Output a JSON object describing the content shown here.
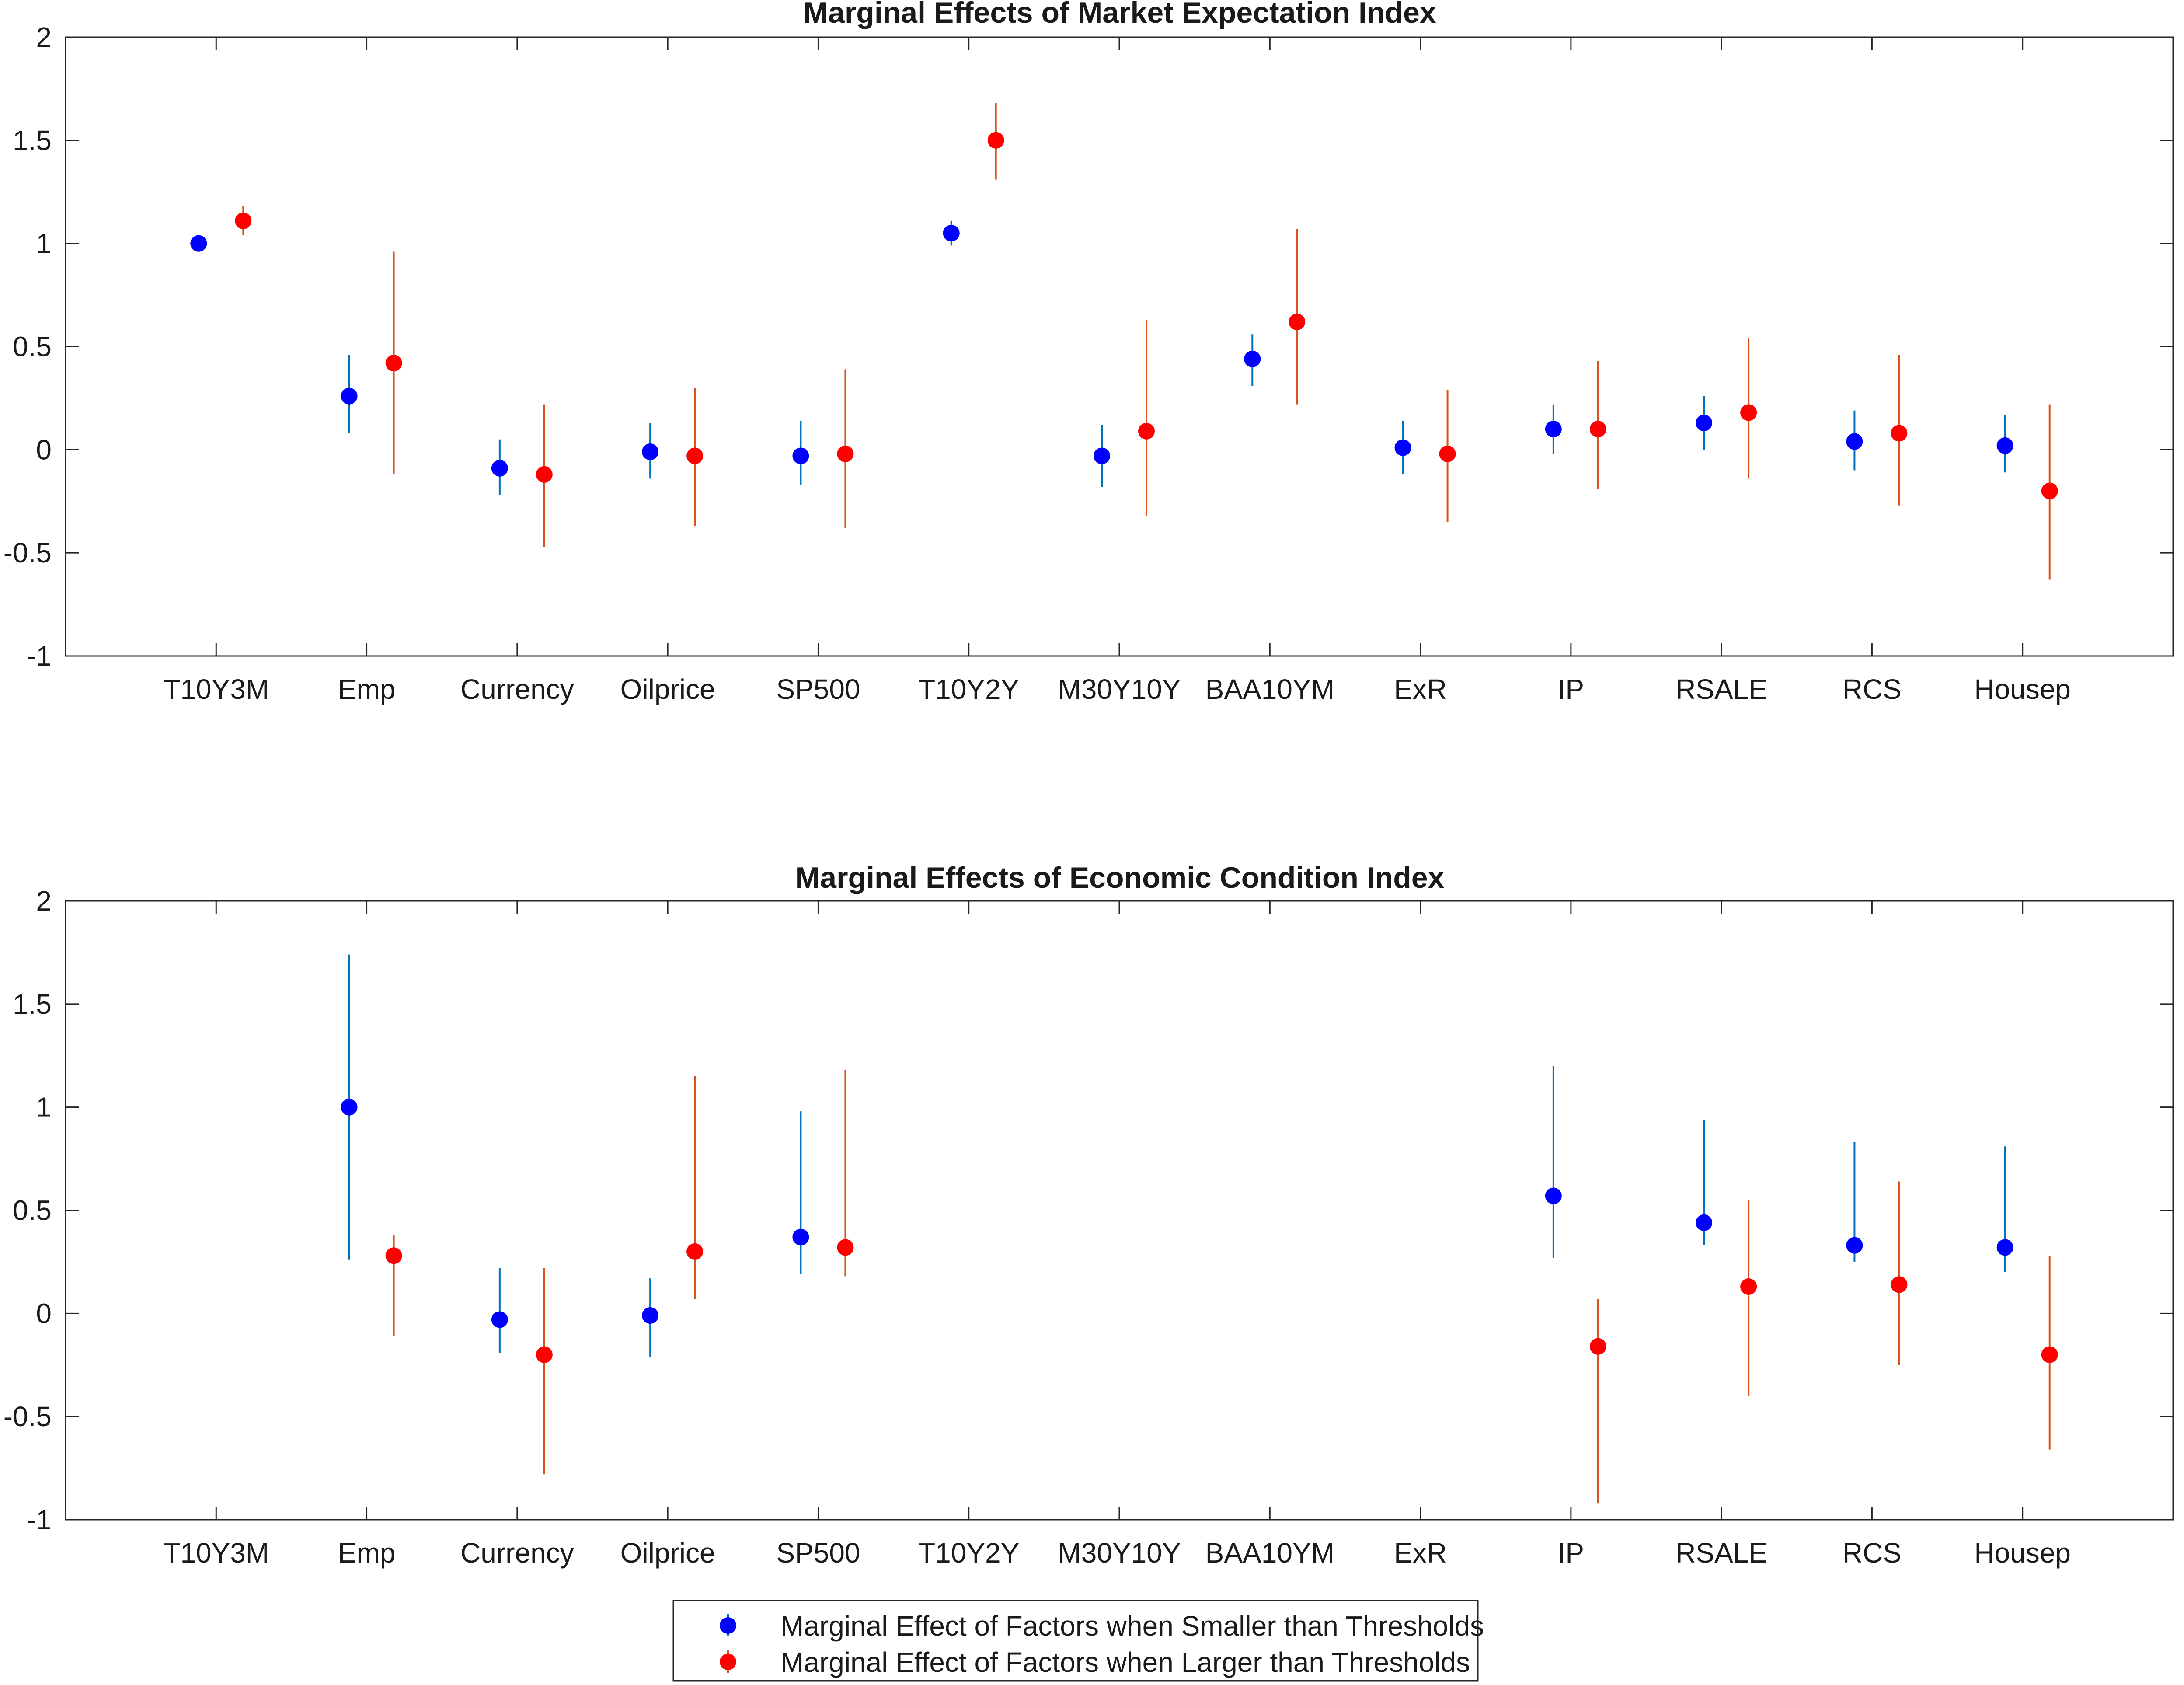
{
  "chart_data": [
    {
      "type": "scatter",
      "title": "Marginal Effects of Market Expectation Index",
      "xlabel": "",
      "ylabel": "",
      "ylim": [
        -1,
        2
      ],
      "yticks": [
        "-1",
        "-0.5",
        "0",
        "0.5",
        "1",
        "1.5",
        "2"
      ],
      "categories": [
        "T10Y3M",
        "Emp",
        "Currency",
        "Oilprice",
        "SP500",
        "T10Y2Y",
        "M30Y10Y",
        "BAA10YM",
        "ExR",
        "IP",
        "RSALE",
        "RCS",
        "Housep"
      ],
      "grid": false,
      "series": [
        {
          "name": "Marginal Effect of Factors when Smaller than Thresholds",
          "marker_color": "#0000ff",
          "bar_color": "#0072bd",
          "values": [
            1.0,
            0.26,
            -0.09,
            -0.01,
            -0.03,
            1.05,
            -0.03,
            0.44,
            0.01,
            0.1,
            0.13,
            0.04,
            0.02
          ],
          "lower": [
            1.0,
            0.08,
            -0.22,
            -0.14,
            -0.17,
            0.99,
            -0.18,
            0.31,
            -0.12,
            -0.02,
            0.0,
            -0.1,
            -0.11
          ],
          "upper": [
            1.0,
            0.46,
            0.05,
            0.13,
            0.14,
            1.11,
            0.12,
            0.56,
            0.14,
            0.22,
            0.26,
            0.19,
            0.17
          ]
        },
        {
          "name": "Marginal Effect of Factors when Larger than Thresholds",
          "marker_color": "#ff0000",
          "bar_color": "#d95319",
          "values": [
            1.11,
            0.42,
            -0.12,
            -0.03,
            -0.02,
            1.5,
            0.09,
            0.62,
            -0.02,
            0.1,
            0.18,
            0.08,
            -0.2
          ],
          "lower": [
            1.04,
            -0.12,
            -0.47,
            -0.37,
            -0.38,
            1.31,
            -0.32,
            0.22,
            -0.35,
            -0.19,
            -0.14,
            -0.27,
            -0.63
          ],
          "upper": [
            1.18,
            0.96,
            0.22,
            0.3,
            0.39,
            1.68,
            0.63,
            1.07,
            0.29,
            0.43,
            0.54,
            0.46,
            0.22
          ]
        }
      ]
    },
    {
      "type": "scatter",
      "title": "Marginal Effects of Economic Condition Index",
      "xlabel": "",
      "ylabel": "",
      "ylim": [
        -1,
        2
      ],
      "yticks": [
        "-1",
        "-0.5",
        "0",
        "0.5",
        "1",
        "1.5",
        "2"
      ],
      "categories": [
        "T10Y3M",
        "Emp",
        "Currency",
        "Oilprice",
        "SP500",
        "T10Y2Y",
        "M30Y10Y",
        "BAA10YM",
        "ExR",
        "IP",
        "RSALE",
        "RCS",
        "Housep"
      ],
      "grid": false,
      "series": [
        {
          "name": "Marginal Effect of Factors when Smaller than Thresholds",
          "marker_color": "#0000ff",
          "bar_color": "#0072bd",
          "values": [
            null,
            1.0,
            -0.03,
            -0.01,
            0.37,
            null,
            null,
            null,
            null,
            0.57,
            0.44,
            0.33,
            0.32
          ],
          "lower": [
            null,
            0.26,
            -0.19,
            -0.21,
            0.19,
            null,
            null,
            null,
            null,
            0.27,
            0.33,
            0.25,
            0.2
          ],
          "upper": [
            null,
            1.74,
            0.22,
            0.17,
            0.98,
            null,
            null,
            null,
            null,
            1.2,
            0.94,
            0.83,
            0.81
          ]
        },
        {
          "name": "Marginal Effect of Factors when Larger than Thresholds",
          "marker_color": "#ff0000",
          "bar_color": "#d95319",
          "values": [
            null,
            0.28,
            -0.2,
            0.3,
            0.32,
            null,
            null,
            null,
            null,
            -0.16,
            0.13,
            0.14,
            -0.2
          ],
          "lower": [
            null,
            -0.11,
            -0.78,
            0.07,
            0.18,
            null,
            null,
            null,
            null,
            -0.92,
            -0.4,
            -0.25,
            -0.66
          ],
          "upper": [
            null,
            0.38,
            0.22,
            1.15,
            1.18,
            null,
            null,
            null,
            null,
            0.07,
            0.55,
            0.64,
            0.28
          ]
        }
      ]
    }
  ],
  "legend": {
    "placement": "bottom-center",
    "entries": [
      "Marginal Effect of Factors when Smaller than Thresholds",
      "Marginal Effect of Factors when Larger than Thresholds"
    ]
  }
}
